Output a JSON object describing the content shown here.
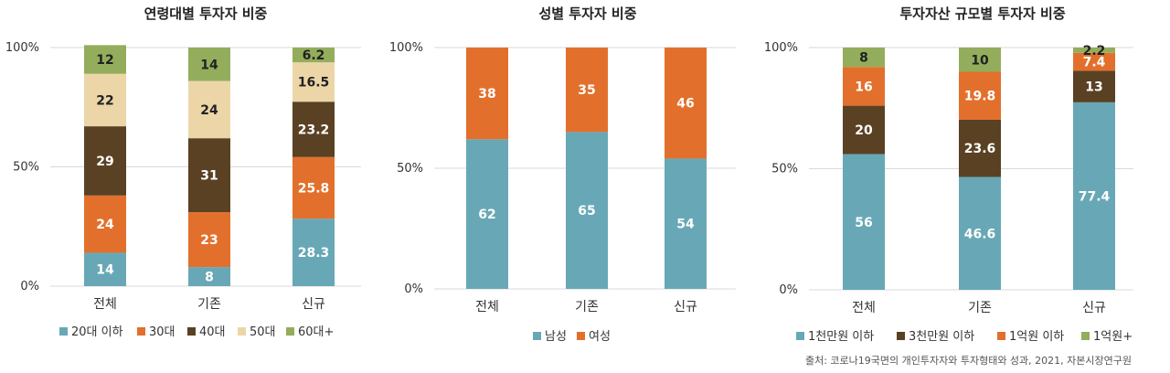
{
  "colors": {
    "teal": "#68a8b6",
    "orange": "#e2702c",
    "brown": "#5a4124",
    "beige": "#ecd6a8",
    "green": "#93ad5c",
    "grid": "#d9d9d9",
    "label_light": "#ffffff",
    "label_dark": "#222222"
  },
  "axis_ticks": [
    "100%",
    "50%",
    "0%"
  ],
  "source_note": "출처: 코로나19국면의 개인투자자와 투자형태와 성과, 2021, 자본시장연구원",
  "chart_data": [
    {
      "type": "bar",
      "stacked": true,
      "title": "연령대별 투자자 비중",
      "categories": [
        "전체",
        "기존",
        "신규"
      ],
      "ylim": [
        0,
        100
      ],
      "grid": true,
      "legend_position": "bottom",
      "series": [
        {
          "name": "20대 이하",
          "color": "#68a8b6",
          "label_color": "#ffffff",
          "values": [
            14,
            8,
            28.3
          ],
          "labels": [
            "14",
            "8",
            "28.3"
          ]
        },
        {
          "name": "30대",
          "color": "#e2702c",
          "label_color": "#ffffff",
          "values": [
            24,
            23,
            25.8
          ],
          "labels": [
            "24",
            "23",
            "25.8"
          ]
        },
        {
          "name": "40대",
          "color": "#5a4124",
          "label_color": "#ffffff",
          "values": [
            29,
            31,
            23.2
          ],
          "labels": [
            "29",
            "31",
            "23.2"
          ]
        },
        {
          "name": "50대",
          "color": "#ecd6a8",
          "label_color": "#222222",
          "values": [
            22,
            24,
            16.5
          ],
          "labels": [
            "22",
            "24",
            "16.5"
          ]
        },
        {
          "name": "60대+",
          "color": "#93ad5c",
          "label_color": "#222222",
          "values": [
            12,
            14,
            6.2
          ],
          "labels": [
            "12",
            "14",
            "6.2"
          ]
        }
      ]
    },
    {
      "type": "bar",
      "stacked": true,
      "title": "성별 투자자 비중",
      "categories": [
        "전체",
        "기존",
        "신규"
      ],
      "ylim": [
        0,
        100
      ],
      "grid": true,
      "legend_position": "bottom",
      "series": [
        {
          "name": "남성",
          "color": "#68a8b6",
          "label_color": "#ffffff",
          "values": [
            62,
            65,
            54
          ],
          "labels": [
            "62",
            "65",
            "54"
          ]
        },
        {
          "name": "여성",
          "color": "#e2702c",
          "label_color": "#ffffff",
          "values": [
            38,
            35,
            46
          ],
          "labels": [
            "38",
            "35",
            "46"
          ]
        }
      ]
    },
    {
      "type": "bar",
      "stacked": true,
      "title": "투자자산 규모별 투자자 비중",
      "categories": [
        "전체",
        "기존",
        "신규"
      ],
      "ylim": [
        0,
        100
      ],
      "grid": true,
      "legend_position": "bottom",
      "series": [
        {
          "name": "1천만원 이하",
          "color": "#68a8b6",
          "label_color": "#ffffff",
          "values": [
            56,
            46.6,
            77.4
          ],
          "labels": [
            "56",
            "46.6",
            "77.4"
          ]
        },
        {
          "name": "3천만원 이하",
          "color": "#5a4124",
          "label_color": "#ffffff",
          "values": [
            20,
            23.6,
            13
          ],
          "labels": [
            "20",
            "23.6",
            "13"
          ]
        },
        {
          "name": "1억원 이하",
          "color": "#e2702c",
          "label_color": "#ffffff",
          "values": [
            16,
            19.8,
            7.4
          ],
          "labels": [
            "16",
            "19.8",
            "7.4"
          ]
        },
        {
          "name": "1억원+",
          "color": "#93ad5c",
          "label_color": "#222222",
          "values": [
            8,
            10,
            2.2
          ],
          "labels": [
            "8",
            "10",
            "2.2"
          ]
        }
      ]
    }
  ]
}
